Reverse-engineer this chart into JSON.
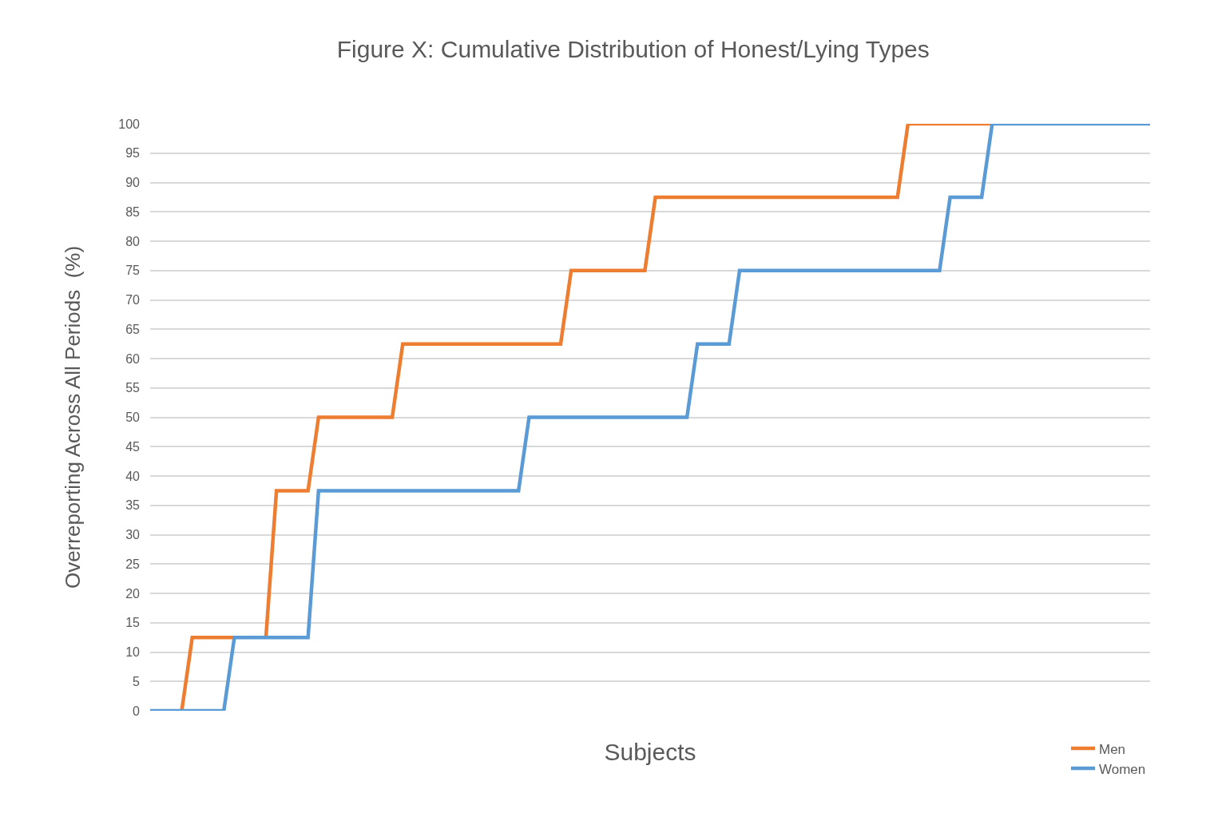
{
  "chart_data": {
    "type": "line",
    "title": "Figure X: Cumulative Distribution of Honest/Lying Types",
    "xlabel": "Subjects",
    "ylabel": "Overreporting Across All Periods  (%)",
    "categories": [
      null,
      null,
      null,
      null,
      null,
      null,
      null,
      null,
      null,
      null,
      null,
      null,
      null,
      null,
      null,
      null,
      null,
      null,
      null,
      null,
      null,
      null,
      null,
      null,
      null,
      null,
      null,
      null,
      null,
      null,
      null,
      null,
      null,
      null,
      null,
      null,
      null,
      null,
      null,
      null,
      null,
      null,
      null,
      null,
      null,
      null,
      null,
      null,
      null,
      null,
      null,
      null,
      null,
      null,
      null,
      null,
      null,
      null,
      null,
      null,
      null,
      null,
      null,
      null,
      null,
      null,
      null,
      null,
      null,
      null,
      null,
      null,
      null,
      null,
      null,
      null,
      null,
      null,
      null,
      null,
      null,
      null,
      null,
      null,
      null,
      null,
      null,
      null,
      null,
      null,
      null,
      null,
      null,
      null,
      null,
      null
    ],
    "series": [
      {
        "name": "Men",
        "color": "#ed7d31",
        "values": [
          null,
          null,
          null,
          0,
          12.5,
          12.5,
          12.5,
          12.5,
          12.5,
          null,
          null,
          12.5,
          37.5,
          37.5,
          37.5,
          37.5,
          50,
          50,
          50,
          50,
          50,
          50,
          50,
          50,
          62.5,
          62.5,
          62.5,
          62.5,
          62.5,
          62.5,
          62.5,
          62.5,
          62.5,
          62.5,
          62.5,
          62.5,
          62.5,
          62.5,
          62.5,
          62.5,
          75,
          75,
          75,
          75,
          75,
          75,
          75,
          75,
          87.5,
          87.5,
          87.5,
          87.5,
          87.5,
          87.5,
          87.5,
          87.5,
          87.5,
          87.5,
          87.5,
          87.5,
          87.5,
          87.5,
          87.5,
          87.5,
          87.5,
          87.5,
          87.5,
          87.5,
          87.5,
          87.5,
          87.5,
          87.5,
          100,
          100,
          100,
          100,
          100,
          100,
          100,
          100,
          100,
          null,
          null,
          null,
          null,
          null,
          null,
          null,
          null,
          null,
          null,
          null,
          null,
          null,
          null,
          null
        ]
      },
      {
        "name": "Women",
        "color": "#5b9bd5",
        "values": [
          0,
          0,
          0,
          0,
          0,
          0,
          0,
          0,
          12.5,
          12.5,
          12.5,
          12.5,
          12.5,
          12.5,
          12.5,
          12.5,
          37.5,
          37.5,
          37.5,
          37.5,
          37.5,
          37.5,
          37.5,
          37.5,
          37.5,
          37.5,
          37.5,
          37.5,
          37.5,
          37.5,
          37.5,
          37.5,
          37.5,
          37.5,
          37.5,
          37.5,
          50,
          50,
          50,
          50,
          50,
          50,
          50,
          50,
          50,
          50,
          50,
          50,
          50,
          50,
          50,
          50,
          62.5,
          62.5,
          62.5,
          62.5,
          75,
          75,
          75,
          75,
          75,
          75,
          75,
          75,
          75,
          75,
          75,
          75,
          75,
          75,
          75,
          75,
          75,
          75,
          75,
          75,
          87.5,
          87.5,
          87.5,
          87.5,
          100,
          100,
          100,
          100,
          100,
          100,
          100,
          100,
          100,
          100,
          100,
          100,
          100,
          100,
          100,
          100
        ]
      }
    ],
    "ylim": [
      0,
      100
    ],
    "yticks": [
      0,
      5,
      10,
      15,
      20,
      25,
      30,
      35,
      40,
      45,
      50,
      55,
      60,
      65,
      70,
      75,
      80,
      85,
      90,
      95,
      100
    ],
    "grid": "y",
    "legend": "bottom right",
    "marker": "none",
    "line_style": "solid"
  }
}
